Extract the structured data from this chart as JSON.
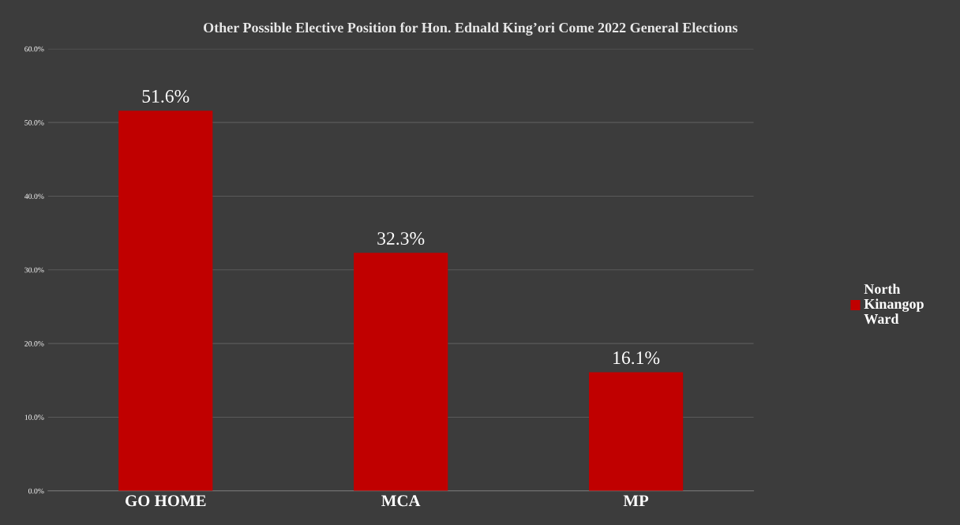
{
  "chart_data": {
    "type": "bar",
    "title": "Other Possible Elective Position for Hon. Ednald King’ori Come 2022 General Elections",
    "categories": [
      "GO HOME",
      "MCA",
      "MP"
    ],
    "series": [
      {
        "name": "North Kinangop Ward",
        "color": "#c00000",
        "values": [
          51.6,
          32.3,
          16.1
        ],
        "value_labels": [
          "51.6%",
          "32.3%",
          "16.1%"
        ]
      }
    ],
    "ylim": [
      0,
      60
    ],
    "yticks": [
      {
        "value": 0,
        "label": "0.0%"
      },
      {
        "value": 10,
        "label": "10.0%"
      },
      {
        "value": 20,
        "label": "20.0%"
      },
      {
        "value": 30,
        "label": "30.0%"
      },
      {
        "value": 40,
        "label": "40.0%"
      },
      {
        "value": 50,
        "label": "50.0%"
      },
      {
        "value": 60,
        "label": "60.0%"
      }
    ],
    "grid": "y",
    "legend": "right"
  }
}
